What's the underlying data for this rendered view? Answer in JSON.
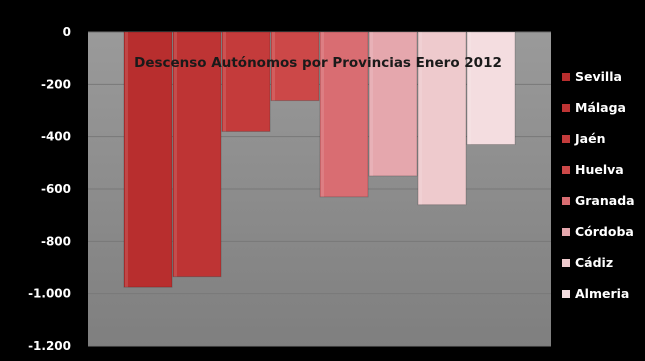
{
  "chart_data": {
    "type": "bar",
    "title": "Descenso Autónomos por Provincias Enero 2012",
    "xlabel": "",
    "ylabel": "",
    "ylim": [
      -1200,
      0
    ],
    "yticks": [
      0,
      -200,
      -400,
      -600,
      -800,
      -1000,
      -1200
    ],
    "ytick_labels": [
      "0",
      "-200",
      "-400",
      "-600",
      "-800",
      "-1.000",
      "-1.200"
    ],
    "grid": "horizontal",
    "legend_position": "right",
    "plot_background": "#8c8c8c",
    "series": [
      {
        "name": "Sevilla",
        "value": -975,
        "color": "#b82e2e"
      },
      {
        "name": "Málaga",
        "value": -935,
        "color": "#be3434"
      },
      {
        "name": "Jaén",
        "value": -380,
        "color": "#c43b3b"
      },
      {
        "name": "Huelva",
        "value": -262,
        "color": "#cc4848"
      },
      {
        "name": "Granada",
        "value": -630,
        "color": "#d96d72"
      },
      {
        "name": "Córdoba",
        "value": -550,
        "color": "#e5a7ad"
      },
      {
        "name": "Cádiz",
        "value": -660,
        "color": "#eecacd"
      },
      {
        "name": "Almeria",
        "value": -430,
        "color": "#f4dde0"
      }
    ]
  }
}
